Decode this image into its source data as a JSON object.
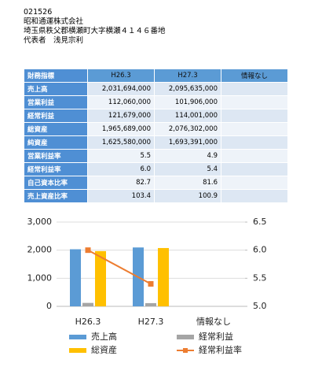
{
  "header": {
    "code": "021526",
    "company": "昭和通運株式会社",
    "address": "埼玉県秩父郡横瀬町大字横瀬４１４６番地",
    "representative": "代表者　浅見宗利"
  },
  "table": {
    "header": [
      "財務指標",
      "H26.3",
      "H27.3",
      "情報なし"
    ],
    "rows": [
      [
        "売上高",
        "2,031,694,000",
        "2,095,635,000"
      ],
      [
        "営業利益",
        "112,060,000",
        "101,906,000"
      ],
      [
        "経常利益",
        "121,679,000",
        "114,001,000"
      ],
      [
        "総資産",
        "1,965,689,000",
        "2,076,302,000"
      ],
      [
        "純資産",
        "1,625,580,000",
        "1,693,391,000"
      ],
      [
        "営業利益率",
        "5.5",
        "4.9"
      ],
      [
        "経常利益率",
        "6.0",
        "5.4"
      ],
      [
        "自己資本比率",
        "82.7",
        "81.6"
      ],
      [
        "売上資産比率",
        "103.4",
        "100.9"
      ]
    ]
  },
  "chart_data": {
    "type": "bar",
    "categories": [
      "H26.3",
      "H27.3",
      "情報なし"
    ],
    "series": [
      {
        "name": "売上高",
        "color": "#5b9bd5",
        "values": [
          2032,
          2096,
          null
        ]
      },
      {
        "name": "経常利益",
        "color": "#a5a5a5",
        "values": [
          122,
          114,
          null
        ]
      },
      {
        "name": "総資産",
        "color": "#ffc000",
        "values": [
          1966,
          2076,
          null
        ]
      },
      {
        "name": "経常利益率",
        "color": "#ed7d31",
        "type": "line",
        "axis": "y2",
        "values": [
          6.0,
          5.4,
          null
        ]
      }
    ],
    "ylim": [
      0,
      3000
    ],
    "yticks": [
      0,
      {
        "value": 1000,
        "label": "1,000"
      },
      {
        "value": 2000,
        "label": "2,000"
      },
      {
        "value": 3000,
        "label": "3,000"
      }
    ],
    "y2lim": [
      5,
      6.5
    ],
    "y2ticks": [
      {
        "value": 5,
        "label": "5.0"
      },
      5.5,
      {
        "value": 6,
        "label": "6.0"
      },
      6.5
    ],
    "grid": true
  }
}
